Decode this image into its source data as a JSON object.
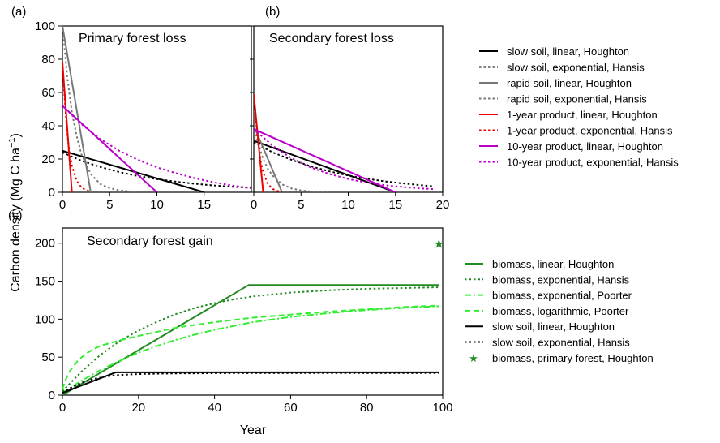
{
  "y_label_main": "Carbon density (Mg C ha",
  "y_label_sup": "−1",
  "y_label_end": ")",
  "chart_data": [
    {
      "type": "line",
      "panel": "(a)",
      "title": "Primary forest loss",
      "xlim": [
        0,
        20
      ],
      "ylim": [
        0,
        100
      ],
      "xticks": [
        0,
        5,
        10,
        15
      ],
      "yticks": [
        0,
        20,
        40,
        60,
        80,
        100
      ],
      "series": [
        {
          "name": "slow soil, linear, Houghton",
          "color": "#000000",
          "style": "solid",
          "x": [
            0,
            15
          ],
          "y": [
            25,
            0
          ]
        },
        {
          "name": "slow soil, exponential, Hansis",
          "color": "#000000",
          "style": "dotted",
          "x": [
            0,
            2,
            4,
            6,
            8,
            10,
            12,
            14,
            16,
            18,
            20
          ],
          "y": [
            24,
            19,
            15.2,
            12.2,
            9.8,
            7.9,
            6.4,
            5.1,
            4.1,
            3.3,
            2.7
          ]
        },
        {
          "name": "rapid soil, linear, Houghton",
          "color": "#777777",
          "style": "solid",
          "x": [
            0,
            3
          ],
          "y": [
            100,
            0
          ]
        },
        {
          "name": "rapid soil, exponential, Hansis",
          "color": "#777777",
          "style": "dotted",
          "x": [
            0,
            0.5,
            1,
            1.5,
            2,
            3,
            4,
            5,
            6,
            7,
            8
          ],
          "y": [
            100,
            70,
            48,
            34,
            23,
            11,
            5,
            2.5,
            1.2,
            0.6,
            0.3
          ]
        },
        {
          "name": "1-year product, linear, Houghton",
          "color": "#ee0000",
          "style": "solid",
          "x": [
            0,
            1
          ],
          "y": [
            78,
            0
          ]
        },
        {
          "name": "1-year product, exponential, Hansis",
          "color": "#ee0000",
          "style": "dotted",
          "x": [
            0,
            0.25,
            0.5,
            0.75,
            1,
            1.5,
            2,
            2.5,
            3
          ],
          "y": [
            78,
            55,
            36,
            24,
            16,
            7,
            3,
            1.2,
            0.5
          ]
        },
        {
          "name": "10-year product, linear, Houghton",
          "color": "#bb00cc",
          "style": "solid",
          "x": [
            0,
            10
          ],
          "y": [
            52,
            0
          ]
        },
        {
          "name": "10-year product, exponential, Hansis",
          "color": "#bb00cc",
          "style": "dotted",
          "x": [
            0,
            2,
            4,
            6,
            8,
            10,
            12,
            14,
            16,
            18,
            20
          ],
          "y": [
            52,
            41,
            32,
            25,
            19.5,
            15,
            11.5,
            8.5,
            6,
            4,
            2.5
          ]
        }
      ]
    },
    {
      "type": "line",
      "panel": "(b)",
      "title": "Secondary forest loss",
      "xlim": [
        0,
        20
      ],
      "ylim": [
        0,
        100
      ],
      "xticks": [
        0,
        5,
        10,
        15,
        20
      ],
      "yticks": [
        0,
        20,
        40,
        60,
        80,
        100
      ],
      "series": [
        {
          "name": "slow soil, linear, Houghton",
          "color": "#000000",
          "style": "solid",
          "x": [
            0,
            15
          ],
          "y": [
            31,
            0
          ]
        },
        {
          "name": "slow soil, exponential, Hansis",
          "color": "#000000",
          "style": "dotted",
          "x": [
            0,
            2,
            4,
            6,
            8,
            10,
            12,
            14,
            16,
            18,
            19
          ],
          "y": [
            30,
            24,
            19.5,
            15.7,
            12.6,
            10.1,
            8.1,
            6.5,
            5.2,
            4.1,
            3.6
          ]
        },
        {
          "name": "rapid soil, linear, Houghton",
          "color": "#777777",
          "style": "solid",
          "x": [
            0,
            3
          ],
          "y": [
            40,
            0
          ]
        },
        {
          "name": "rapid soil, exponential, Hansis",
          "color": "#777777",
          "style": "dotted",
          "x": [
            0,
            0.5,
            1,
            1.5,
            2,
            3,
            4,
            5,
            6,
            7,
            8
          ],
          "y": [
            40,
            29,
            20,
            14,
            10,
            4.8,
            2.3,
            1.1,
            0.5,
            0.2,
            0.1
          ]
        },
        {
          "name": "1-year product, linear, Houghton",
          "color": "#ee0000",
          "style": "solid",
          "x": [
            0,
            1
          ],
          "y": [
            59,
            0
          ]
        },
        {
          "name": "1-year product, exponential, Hansis",
          "color": "#ee0000",
          "style": "dotted",
          "x": [
            0,
            0.25,
            0.5,
            0.75,
            1,
            1.5,
            2,
            2.5,
            3
          ],
          "y": [
            59,
            42,
            28,
            18,
            12,
            5,
            2,
            0.8,
            0.3
          ]
        },
        {
          "name": "10-year product, linear, Houghton",
          "color": "#bb00cc",
          "style": "solid",
          "x": [
            0,
            15
          ],
          "y": [
            38,
            0
          ]
        },
        {
          "name": "10-year product, exponential, Hansis",
          "color": "#bb00cc",
          "style": "dotted",
          "x": [
            0,
            2,
            4,
            6,
            8,
            10,
            12,
            14,
            16,
            18,
            19
          ],
          "y": [
            38,
            28,
            20.5,
            15,
            11,
            8,
            5.8,
            4.2,
            3,
            2.2,
            1.9
          ]
        }
      ]
    },
    {
      "type": "line",
      "panel": "(c)",
      "title": "Secondary forest gain",
      "xlabel": "Year",
      "xlim": [
        0,
        100
      ],
      "ylim": [
        0,
        220
      ],
      "xticks": [
        0,
        20,
        40,
        60,
        80,
        100
      ],
      "yticks": [
        0,
        50,
        100,
        150,
        200
      ],
      "series": [
        {
          "name": "biomass, linear, Houghton",
          "color": "#228b22",
          "style": "solid",
          "x": [
            0,
            49,
            99
          ],
          "y": [
            0,
            145,
            145
          ]
        },
        {
          "name": "biomass, exponential, Hansis",
          "color": "#228b22",
          "style": "dotted",
          "x": [
            0,
            5,
            10,
            15,
            20,
            25,
            30,
            35,
            40,
            45,
            50,
            60,
            70,
            80,
            90,
            99
          ],
          "y": [
            5,
            31,
            53,
            71,
            85,
            97,
            107,
            115,
            121,
            126,
            130,
            135,
            138,
            140,
            141,
            142
          ]
        },
        {
          "name": "biomass, exponential, Poorter",
          "color": "#33ee33",
          "style": "dashdot",
          "x": [
            0,
            5,
            10,
            15,
            20,
            25,
            30,
            35,
            40,
            45,
            50,
            60,
            70,
            80,
            90,
            99
          ],
          "y": [
            3,
            19,
            33,
            45,
            56,
            65,
            73,
            80,
            86,
            91,
            96,
            103,
            108,
            112,
            115,
            117
          ]
        },
        {
          "name": "biomass, logarithmic, Poorter",
          "color": "#33ee33",
          "style": "dashed",
          "x": [
            0,
            1,
            2,
            4,
            6,
            8,
            10,
            15,
            20,
            30,
            40,
            50,
            60,
            70,
            80,
            90,
            99
          ],
          "y": [
            8,
            22,
            32,
            45,
            54,
            60,
            65,
            72,
            78,
            89,
            96,
            102,
            106,
            110,
            113,
            116,
            118
          ]
        },
        {
          "name": "slow soil, linear, Houghton",
          "color": "#000000",
          "style": "solid",
          "x": [
            0,
            14,
            99
          ],
          "y": [
            3,
            30,
            30
          ]
        },
        {
          "name": "slow soil, exponential, Hansis",
          "color": "#000000",
          "style": "dotted",
          "x": [
            0,
            2,
            4,
            6,
            8,
            10,
            12,
            15,
            20,
            25,
            30,
            40,
            50,
            99
          ],
          "y": [
            3,
            9,
            14,
            18,
            21,
            23,
            25,
            26.5,
            27.8,
            28.3,
            28.6,
            28.8,
            29,
            29
          ]
        },
        {
          "name": "biomass, primary forest, Houghton",
          "color": "#228b22",
          "style": "star",
          "x": [
            99
          ],
          "y": [
            200
          ]
        }
      ]
    }
  ]
}
